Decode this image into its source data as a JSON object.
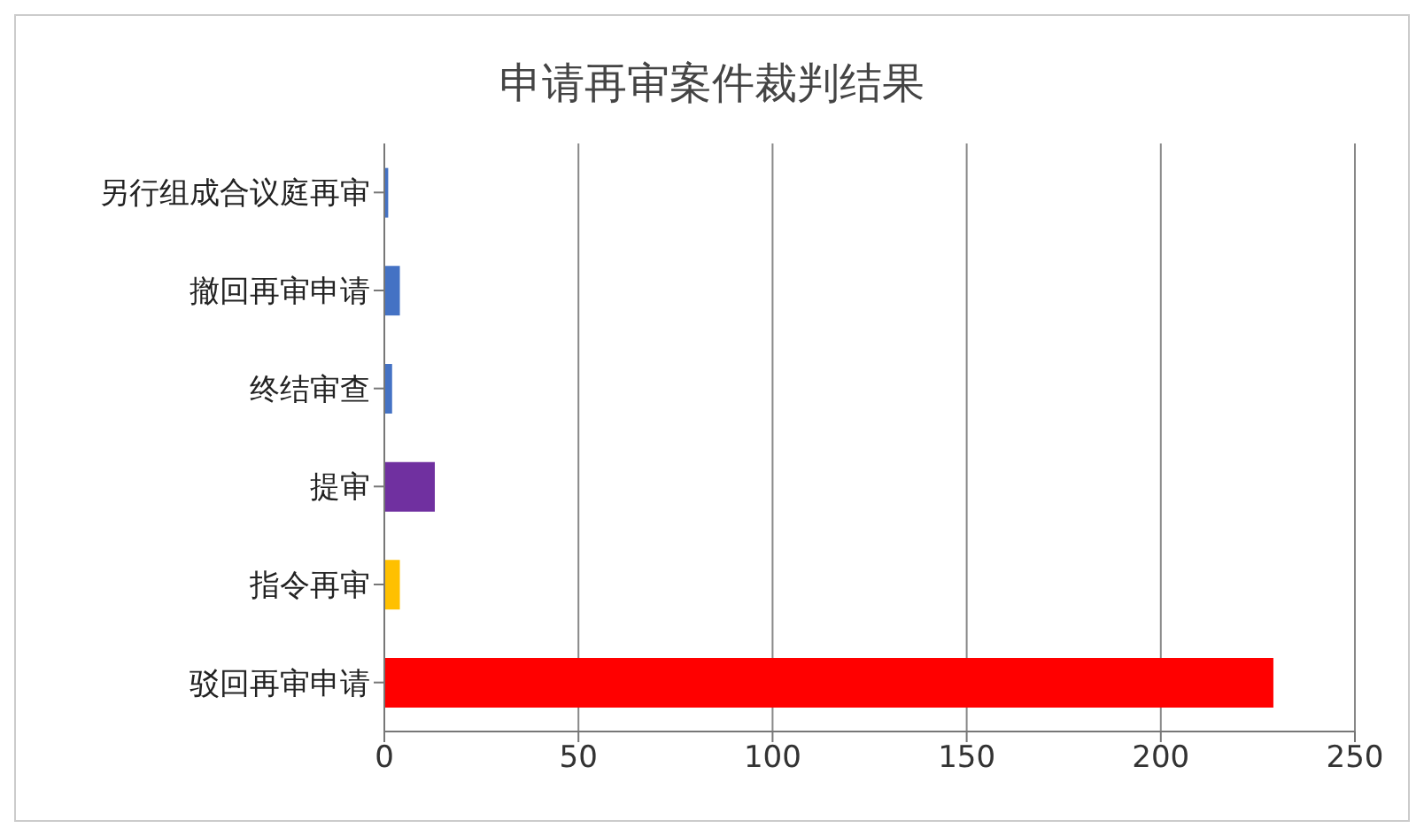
{
  "chart_data": {
    "type": "bar",
    "orientation": "horizontal",
    "title": "申请再审案件裁判结果",
    "categories": [
      "另行组成合议庭再审",
      "撤回再审申请",
      "终结审查",
      "提审",
      "指令再审",
      "驳回再审申请"
    ],
    "values": [
      1,
      4,
      2,
      13,
      4,
      229
    ],
    "colors": [
      "#4472c4",
      "#4472c4",
      "#4472c4",
      "#7030a0",
      "#ffc000",
      "#ff0000"
    ],
    "xlim": [
      0,
      250
    ],
    "xticks": [
      0,
      50,
      100,
      150,
      200,
      250
    ],
    "grid": "x"
  }
}
